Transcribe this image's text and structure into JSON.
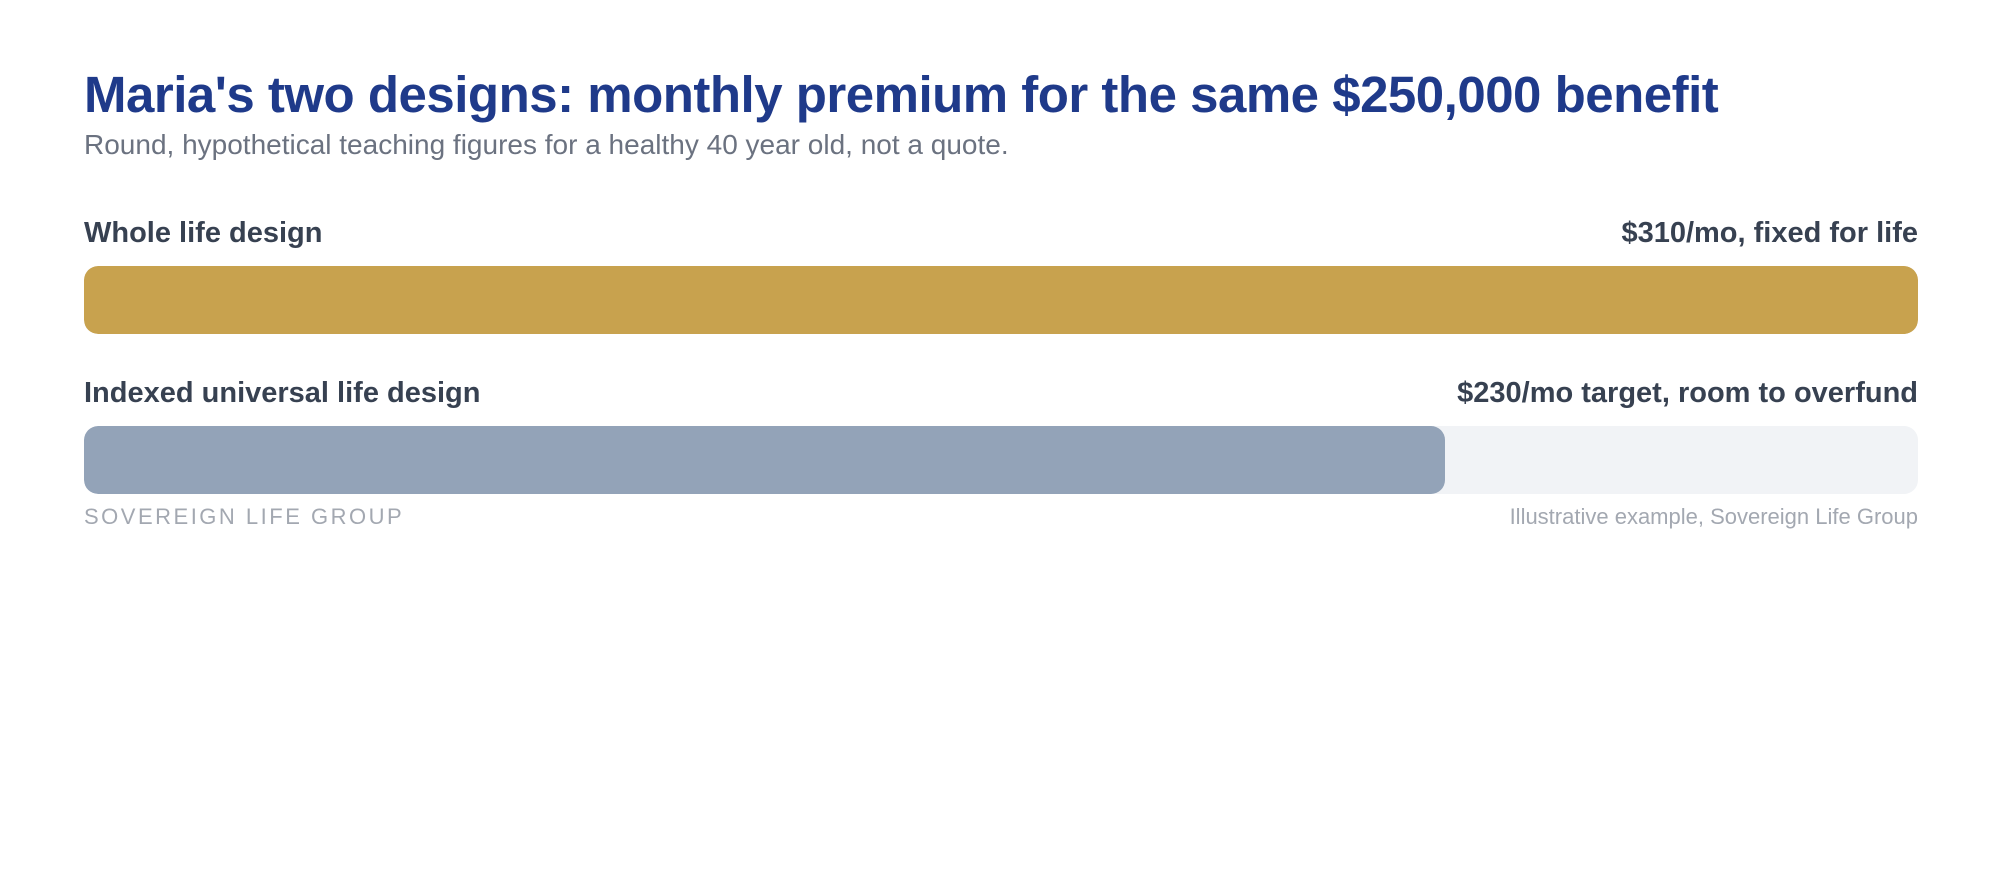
{
  "chart_data": {
    "type": "bar",
    "orientation": "horizontal",
    "title": "Maria's two designs: monthly premium for the same $250,000 benefit",
    "subtitle": "Round, hypothetical teaching figures for a healthy 40 year old, not a quote.",
    "categories": [
      "Whole life design",
      "Indexed universal life design"
    ],
    "values": [
      310,
      230
    ],
    "value_labels": [
      "$310/mo, fixed for life",
      "$230/mo target, room to overfund"
    ],
    "xlim": [
      0,
      310
    ],
    "unit": "$/mo",
    "colors": [
      "#c8a24e",
      "#93a3b8"
    ],
    "track_color": "#f1f3f6",
    "grid": false,
    "legend": "none"
  },
  "footer": {
    "brand": "SOVEREIGN LIFE GROUP",
    "note": "Illustrative example, Sovereign Life Group"
  },
  "colors": {
    "title": "#1f3a8a",
    "subtitle": "#6b7280",
    "label": "#374151",
    "muted": "#a3a8b1"
  }
}
